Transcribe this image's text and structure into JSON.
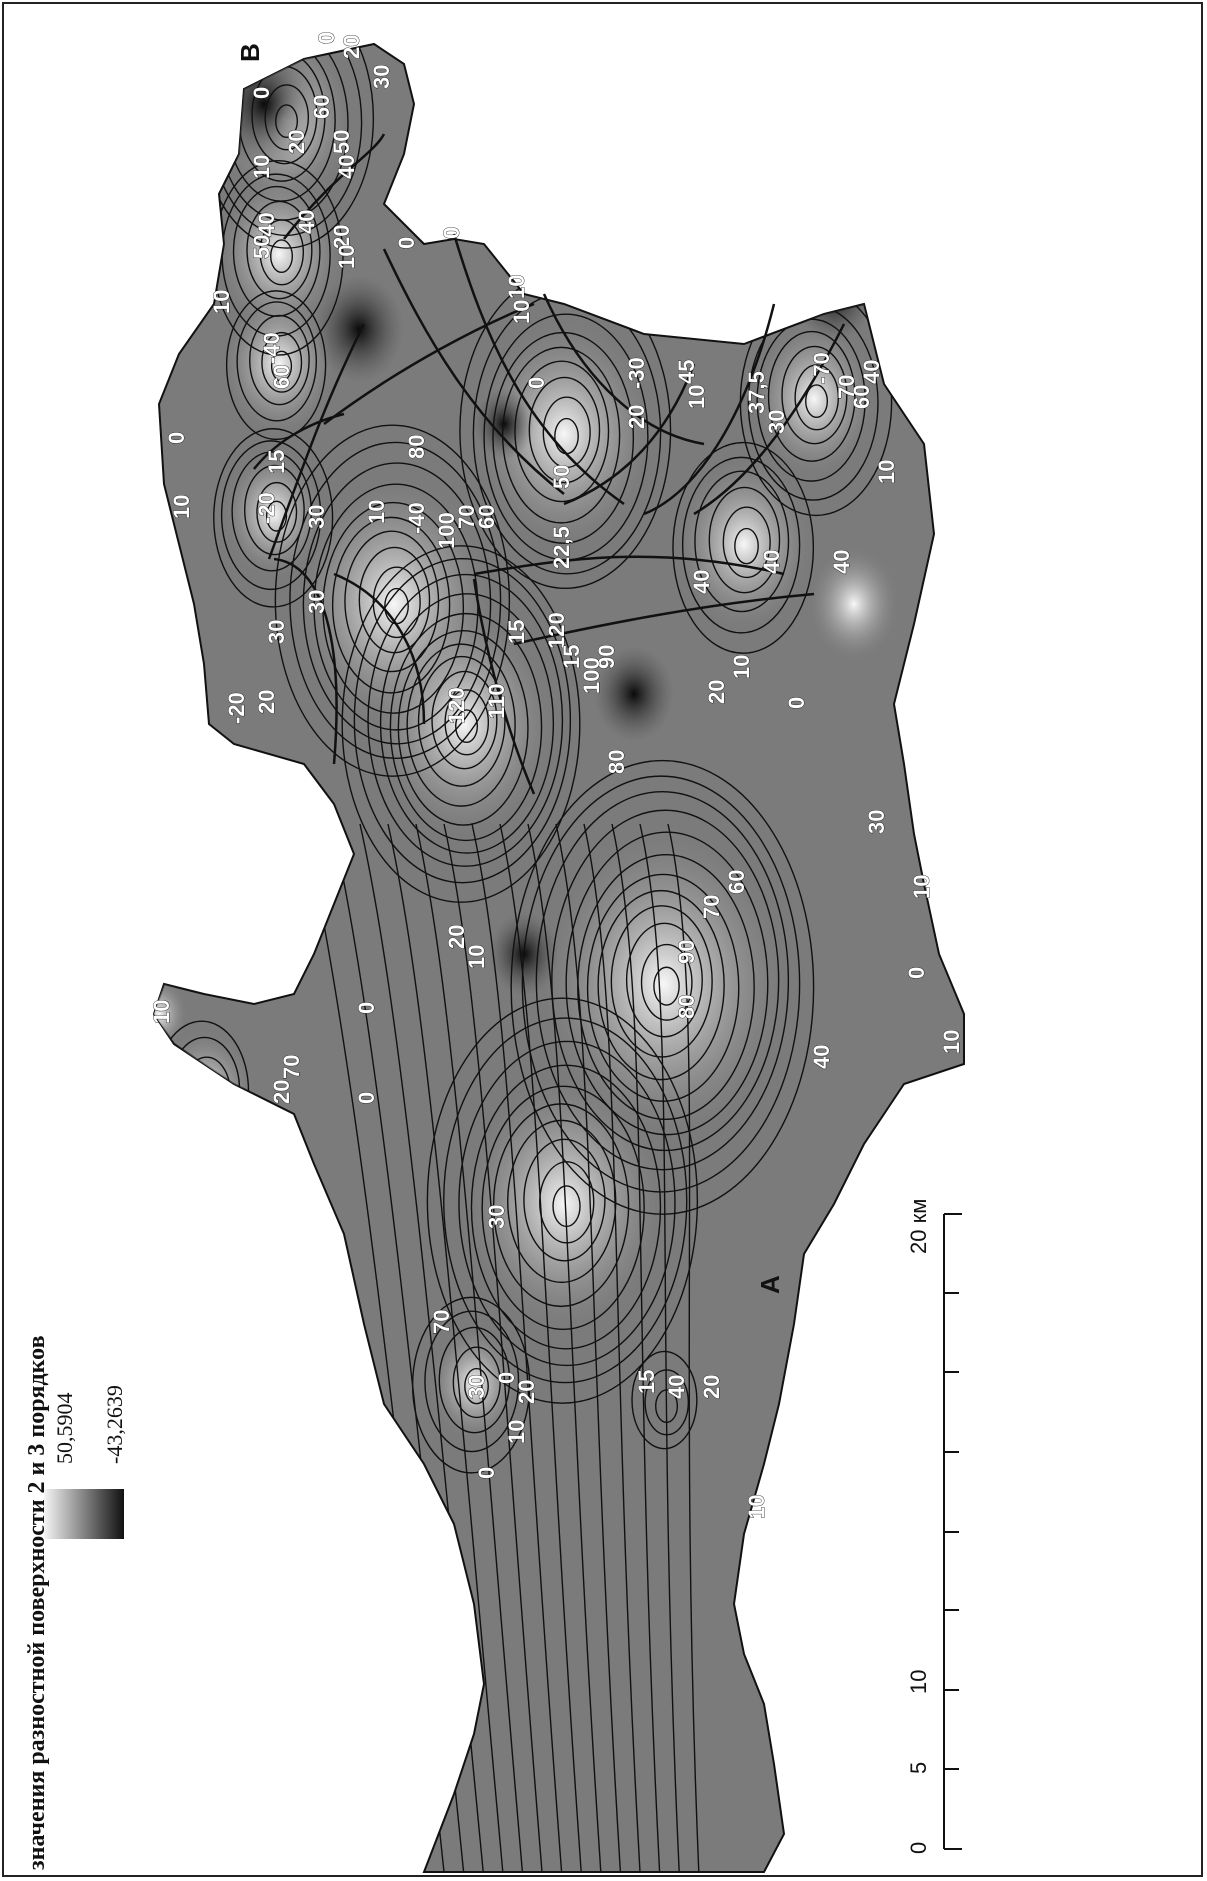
{
  "legend": {
    "title": "значения разностной поверхности 2 и 3 порядков",
    "max_value": "50,5904",
    "min_value": "-43,2639"
  },
  "scale_bar": {
    "ticks": [
      "0",
      "5",
      "10",
      "20 км"
    ]
  },
  "profile_points": {
    "start": "А",
    "end": "В"
  },
  "contour_labels": [
    "0",
    "10",
    "20",
    "30",
    "40",
    "50",
    "60",
    "70",
    "80",
    "90",
    "100",
    "110",
    "120",
    "15",
    "22,5",
    "37,5",
    "45",
    "-10",
    "-20",
    "-30",
    "-40",
    "-70"
  ],
  "colors": {
    "high": "#f2f2f2",
    "low": "#111111"
  }
}
